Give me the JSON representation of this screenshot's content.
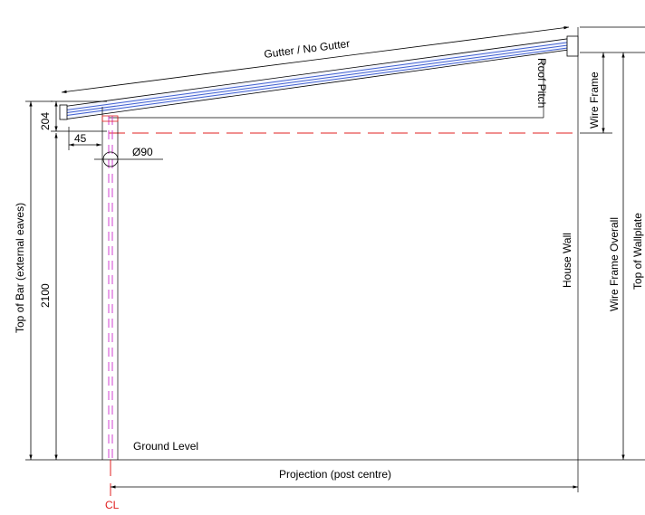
{
  "labels": {
    "gutter": "Gutter / No Gutter",
    "roof_pitch": "Roof Pitch",
    "wire_frame": "Wire Frame",
    "dim_204": "204",
    "dim_45": "45",
    "diameter": "Ø90",
    "top_of_bar": "Top of Bar (external eaves)",
    "dim_2100": "2100",
    "house_wall": "House Wall",
    "wire_frame_overall": "Wire Frame Overall",
    "top_of_wallplate": "Top of Wallplate",
    "ground_level": "Ground Level",
    "projection": "Projection (post centre)",
    "centreline": "CL"
  },
  "colors": {
    "line": "#000000",
    "centreline": "#e02020",
    "post_axis": "#d040d0",
    "roof_inner": "#4060d0"
  }
}
